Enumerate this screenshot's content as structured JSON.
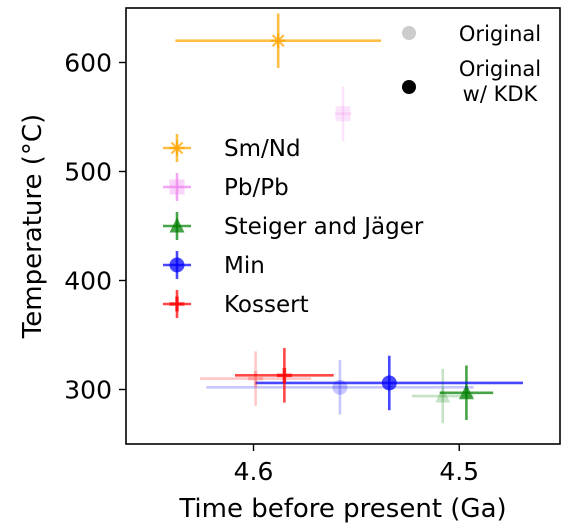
{
  "chart_data": {
    "type": "scatter",
    "xlabel": "Time before present (Ga)",
    "ylabel": "Temperature (°C)",
    "xlim": [
      4.662,
      4.451
    ],
    "ylim": [
      250,
      650
    ],
    "x_inverted": true,
    "xticks": [
      4.6,
      4.5
    ],
    "yticks": [
      300,
      400,
      500,
      600
    ],
    "grid": false,
    "legend_placement": "center-left",
    "marker_legend_placement": "top-right",
    "marker_legend": [
      {
        "label": "Original",
        "style": "faded"
      },
      {
        "label": "Original\nw/ KDK",
        "style": "solid"
      }
    ],
    "series": [
      {
        "name": "Sm/Nd",
        "color": "#ffa500",
        "marker": "star",
        "points": [
          {
            "x": 4.588,
            "y": 620,
            "xerr": 0.05,
            "yerr": 25,
            "style": "solid"
          }
        ]
      },
      {
        "name": "Pb/Pb",
        "color": "#ee82ee",
        "marker": "square",
        "points": [
          {
            "x": 4.5565,
            "y": 553,
            "xerr": 0.004,
            "yerr": 25,
            "style": "faded"
          }
        ]
      },
      {
        "name": "Steiger and Jäger",
        "color": "#008000",
        "marker": "triangle",
        "points": [
          {
            "x": 4.508,
            "y": 294,
            "xerr": 0.015,
            "yerr": 25,
            "style": "faded"
          },
          {
            "x": 4.4965,
            "y": 297,
            "xerr": 0.013,
            "yerr": 25,
            "style": "solid"
          }
        ]
      },
      {
        "name": "Min",
        "color": "#0000ff",
        "marker": "circle",
        "points": [
          {
            "x": 4.558,
            "y": 302,
            "xerr": 0.065,
            "yerr": 25,
            "style": "faded"
          },
          {
            "x": 4.534,
            "y": 306,
            "xerr": 0.065,
            "yerr": 25,
            "style": "solid"
          }
        ]
      },
      {
        "name": "Kossert",
        "color": "#ff0000",
        "marker": "plus",
        "points": [
          {
            "x": 4.599,
            "y": 310,
            "xerr": 0.027,
            "yerr": 25,
            "style": "faded"
          },
          {
            "x": 4.585,
            "y": 313,
            "xerr": 0.024,
            "yerr": 25,
            "style": "solid"
          }
        ]
      }
    ]
  }
}
